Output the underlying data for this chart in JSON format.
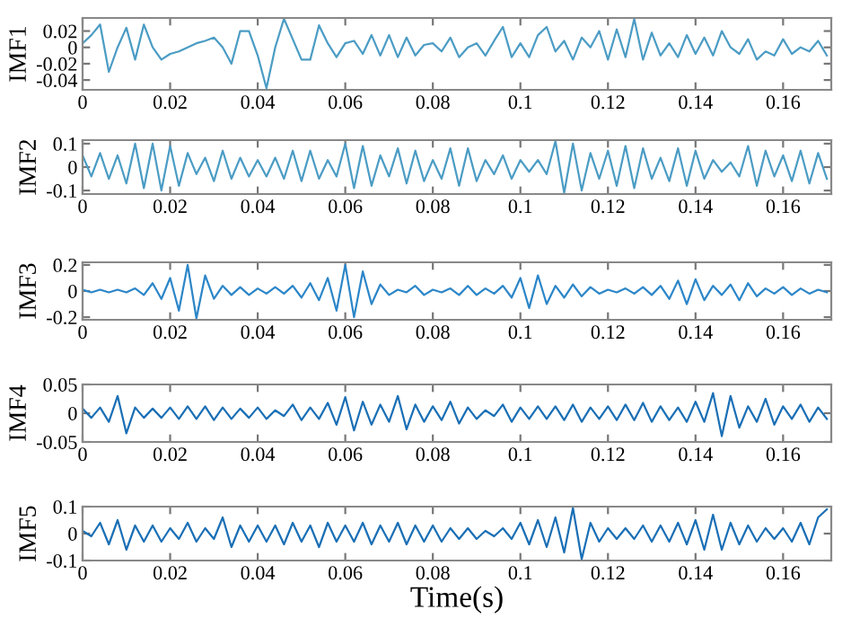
{
  "chart_data": [
    {
      "type": "line",
      "ylabel": "IMF1",
      "xlim": [
        0,
        0.171
      ],
      "xticks": [
        0,
        0.02,
        0.04,
        0.06,
        0.08,
        0.1,
        0.12,
        0.14,
        0.16
      ],
      "ylim": [
        -0.052,
        0.036
      ],
      "yticks": [
        -0.04,
        -0.02,
        0,
        0.02
      ],
      "x": [
        0,
        0.002,
        0.004,
        0.006,
        0.008,
        0.01,
        0.012,
        0.014,
        0.016,
        0.018,
        0.02,
        0.022,
        0.024,
        0.026,
        0.028,
        0.03,
        0.032,
        0.034,
        0.036,
        0.038,
        0.04,
        0.042,
        0.044,
        0.046,
        0.048,
        0.05,
        0.052,
        0.054,
        0.056,
        0.058,
        0.06,
        0.062,
        0.064,
        0.066,
        0.068,
        0.07,
        0.072,
        0.074,
        0.076,
        0.078,
        0.08,
        0.082,
        0.084,
        0.086,
        0.088,
        0.09,
        0.092,
        0.094,
        0.096,
        0.098,
        0.1,
        0.102,
        0.104,
        0.106,
        0.108,
        0.11,
        0.112,
        0.114,
        0.116,
        0.118,
        0.12,
        0.122,
        0.124,
        0.126,
        0.128,
        0.13,
        0.132,
        0.134,
        0.136,
        0.138,
        0.14,
        0.142,
        0.144,
        0.146,
        0.148,
        0.15,
        0.152,
        0.154,
        0.156,
        0.158,
        0.16,
        0.162,
        0.164,
        0.166,
        0.168,
        0.17
      ],
      "series": [
        {
          "color": "#4b9cc4",
          "values": [
            0.005,
            0.015,
            0.028,
            -0.03,
            0.0,
            0.024,
            -0.015,
            0.028,
            0.0,
            -0.015,
            -0.008,
            -0.005,
            0.0,
            0.005,
            0.008,
            0.012,
            0.0,
            -0.02,
            0.02,
            0.02,
            -0.01,
            -0.05,
            0.0,
            0.035,
            0.01,
            -0.015,
            -0.015,
            0.027,
            0.005,
            -0.012,
            0.005,
            0.008,
            -0.008,
            0.015,
            -0.01,
            0.015,
            -0.012,
            0.012,
            -0.01,
            0.003,
            0.005,
            -0.005,
            0.012,
            -0.012,
            0.0,
            0.005,
            -0.01,
            0.008,
            0.025,
            -0.012,
            0.005,
            -0.012,
            0.015,
            0.025,
            -0.005,
            0.008,
            -0.015,
            0.012,
            0.0,
            0.02,
            -0.015,
            0.022,
            -0.012,
            0.035,
            -0.015,
            0.018,
            -0.01,
            0.005,
            -0.012,
            0.015,
            -0.008,
            0.012,
            -0.01,
            0.02,
            0.0,
            -0.008,
            0.01,
            -0.015,
            -0.005,
            -0.01,
            0.01,
            -0.008,
            0.0,
            -0.005,
            0.008,
            -0.01
          ]
        }
      ]
    },
    {
      "type": "line",
      "ylabel": "IMF2",
      "xlim": [
        0,
        0.171
      ],
      "xticks": [
        0,
        0.02,
        0.04,
        0.06,
        0.08,
        0.1,
        0.12,
        0.14,
        0.16
      ],
      "ylim": [
        -0.115,
        0.115
      ],
      "yticks": [
        -0.1,
        0,
        0.1
      ],
      "x": [
        0,
        0.002,
        0.004,
        0.006,
        0.008,
        0.01,
        0.012,
        0.014,
        0.016,
        0.018,
        0.02,
        0.022,
        0.024,
        0.026,
        0.028,
        0.03,
        0.032,
        0.034,
        0.036,
        0.038,
        0.04,
        0.042,
        0.044,
        0.046,
        0.048,
        0.05,
        0.052,
        0.054,
        0.056,
        0.058,
        0.06,
        0.062,
        0.064,
        0.066,
        0.068,
        0.07,
        0.072,
        0.074,
        0.076,
        0.078,
        0.08,
        0.082,
        0.084,
        0.086,
        0.088,
        0.09,
        0.092,
        0.094,
        0.096,
        0.098,
        0.1,
        0.102,
        0.104,
        0.106,
        0.108,
        0.11,
        0.112,
        0.114,
        0.116,
        0.118,
        0.12,
        0.122,
        0.124,
        0.126,
        0.128,
        0.13,
        0.132,
        0.134,
        0.136,
        0.138,
        0.14,
        0.142,
        0.144,
        0.146,
        0.148,
        0.15,
        0.152,
        0.154,
        0.156,
        0.158,
        0.16,
        0.162,
        0.164,
        0.166,
        0.168,
        0.17
      ],
      "series": [
        {
          "color": "#4b9cc4",
          "values": [
            0.05,
            -0.04,
            0.06,
            -0.05,
            0.05,
            -0.07,
            0.1,
            -0.09,
            0.1,
            -0.1,
            0.09,
            -0.08,
            0.06,
            -0.03,
            0.04,
            -0.06,
            0.07,
            -0.05,
            0.04,
            -0.04,
            0.03,
            -0.04,
            0.04,
            -0.05,
            0.07,
            -0.06,
            0.07,
            -0.05,
            0.03,
            -0.04,
            0.1,
            -0.09,
            0.09,
            -0.08,
            0.05,
            -0.04,
            0.08,
            -0.07,
            0.07,
            -0.06,
            0.03,
            -0.05,
            0.08,
            -0.08,
            0.08,
            -0.06,
            0.03,
            -0.03,
            0.05,
            -0.05,
            0.03,
            -0.02,
            0.03,
            -0.03,
            0.11,
            -0.11,
            0.1,
            -0.1,
            0.06,
            -0.05,
            0.07,
            -0.08,
            0.09,
            -0.09,
            0.08,
            -0.05,
            0.04,
            -0.06,
            0.08,
            -0.08,
            0.07,
            -0.05,
            0.03,
            -0.02,
            0.02,
            -0.04,
            0.09,
            -0.08,
            0.07,
            -0.04,
            0.05,
            -0.06,
            0.07,
            -0.07,
            0.06,
            -0.05
          ]
        }
      ]
    },
    {
      "type": "line",
      "ylabel": "IMF3",
      "xlim": [
        0,
        0.171
      ],
      "xticks": [
        0,
        0.02,
        0.04,
        0.06,
        0.08,
        0.1,
        0.12,
        0.14,
        0.16
      ],
      "ylim": [
        -0.22,
        0.22
      ],
      "yticks": [
        -0.2,
        0,
        0.2
      ],
      "x": [
        0,
        0.002,
        0.004,
        0.006,
        0.008,
        0.01,
        0.012,
        0.014,
        0.016,
        0.018,
        0.02,
        0.022,
        0.024,
        0.026,
        0.028,
        0.03,
        0.032,
        0.034,
        0.036,
        0.038,
        0.04,
        0.042,
        0.044,
        0.046,
        0.048,
        0.05,
        0.052,
        0.054,
        0.056,
        0.058,
        0.06,
        0.062,
        0.064,
        0.066,
        0.068,
        0.07,
        0.072,
        0.074,
        0.076,
        0.078,
        0.08,
        0.082,
        0.084,
        0.086,
        0.088,
        0.09,
        0.092,
        0.094,
        0.096,
        0.098,
        0.1,
        0.102,
        0.104,
        0.106,
        0.108,
        0.11,
        0.112,
        0.114,
        0.116,
        0.118,
        0.12,
        0.122,
        0.124,
        0.126,
        0.128,
        0.13,
        0.132,
        0.134,
        0.136,
        0.138,
        0.14,
        0.142,
        0.144,
        0.146,
        0.148,
        0.15,
        0.152,
        0.154,
        0.156,
        0.158,
        0.16,
        0.162,
        0.164,
        0.166,
        0.168,
        0.17
      ],
      "series": [
        {
          "color": "#2c86c8",
          "values": [
            0.01,
            -0.01,
            0.01,
            -0.01,
            0.01,
            -0.01,
            0.02,
            -0.03,
            0.06,
            -0.06,
            0.1,
            -0.15,
            0.2,
            -0.21,
            0.12,
            -0.06,
            0.04,
            -0.03,
            0.03,
            -0.03,
            0.02,
            -0.02,
            0.03,
            -0.02,
            0.04,
            -0.05,
            0.06,
            -0.07,
            0.1,
            -0.15,
            0.2,
            -0.2,
            0.15,
            -0.1,
            0.05,
            -0.03,
            0.01,
            -0.01,
            0.04,
            -0.03,
            0.01,
            -0.01,
            0.02,
            -0.03,
            0.04,
            -0.03,
            0.02,
            -0.02,
            0.04,
            -0.05,
            0.1,
            -0.13,
            0.12,
            -0.1,
            0.04,
            -0.05,
            0.05,
            -0.04,
            0.03,
            -0.02,
            0.01,
            -0.01,
            0.02,
            -0.02,
            0.03,
            -0.03,
            0.04,
            -0.06,
            0.08,
            -0.1,
            0.09,
            -0.07,
            0.04,
            -0.03,
            0.05,
            -0.07,
            0.06,
            -0.04,
            0.02,
            -0.02,
            0.03,
            -0.03,
            0.02,
            -0.02,
            0.01,
            -0.01
          ]
        }
      ]
    },
    {
      "type": "line",
      "ylabel": "IMF4",
      "xlim": [
        0,
        0.171
      ],
      "xticks": [
        0,
        0.02,
        0.04,
        0.06,
        0.08,
        0.1,
        0.12,
        0.14,
        0.16
      ],
      "ylim": [
        -0.05,
        0.05
      ],
      "yticks": [
        -0.05,
        0,
        0.05
      ],
      "x": [
        0,
        0.002,
        0.004,
        0.006,
        0.008,
        0.01,
        0.012,
        0.014,
        0.016,
        0.018,
        0.02,
        0.022,
        0.024,
        0.026,
        0.028,
        0.03,
        0.032,
        0.034,
        0.036,
        0.038,
        0.04,
        0.042,
        0.044,
        0.046,
        0.048,
        0.05,
        0.052,
        0.054,
        0.056,
        0.058,
        0.06,
        0.062,
        0.064,
        0.066,
        0.068,
        0.07,
        0.072,
        0.074,
        0.076,
        0.078,
        0.08,
        0.082,
        0.084,
        0.086,
        0.088,
        0.09,
        0.092,
        0.094,
        0.096,
        0.098,
        0.1,
        0.102,
        0.104,
        0.106,
        0.108,
        0.11,
        0.112,
        0.114,
        0.116,
        0.118,
        0.12,
        0.122,
        0.124,
        0.126,
        0.128,
        0.13,
        0.132,
        0.134,
        0.136,
        0.138,
        0.14,
        0.142,
        0.144,
        0.146,
        0.148,
        0.15,
        0.152,
        0.154,
        0.156,
        0.158,
        0.16,
        0.162,
        0.164,
        0.166,
        0.168,
        0.17
      ],
      "series": [
        {
          "color": "#1a6fb5",
          "values": [
            0.008,
            -0.008,
            0.01,
            -0.015,
            0.03,
            -0.035,
            0.01,
            -0.008,
            0.008,
            -0.008,
            0.01,
            -0.01,
            0.012,
            -0.01,
            0.012,
            -0.012,
            0.01,
            -0.01,
            0.008,
            -0.008,
            0.01,
            -0.01,
            0.005,
            -0.005,
            0.015,
            -0.012,
            0.01,
            -0.01,
            0.018,
            -0.02,
            0.028,
            -0.03,
            0.02,
            -0.02,
            0.015,
            -0.015,
            0.03,
            -0.028,
            0.015,
            -0.015,
            0.012,
            -0.012,
            0.02,
            -0.018,
            0.01,
            -0.01,
            0.005,
            -0.005,
            0.015,
            -0.015,
            0.01,
            -0.01,
            0.012,
            -0.01,
            0.012,
            -0.012,
            0.015,
            -0.015,
            0.01,
            -0.01,
            0.012,
            -0.012,
            0.015,
            -0.012,
            0.018,
            -0.015,
            0.012,
            -0.012,
            0.01,
            -0.015,
            0.02,
            -0.015,
            0.035,
            -0.04,
            0.03,
            -0.025,
            0.012,
            -0.015,
            0.025,
            -0.02,
            0.012,
            -0.01,
            0.015,
            -0.015,
            0.01,
            -0.01
          ]
        }
      ]
    },
    {
      "type": "line",
      "ylabel": "IMF5",
      "xlabel": "Time(s)",
      "xlim": [
        0,
        0.171
      ],
      "xticks": [
        0,
        0.02,
        0.04,
        0.06,
        0.08,
        0.1,
        0.12,
        0.14,
        0.16
      ],
      "ylim": [
        -0.1,
        0.1
      ],
      "yticks": [
        -0.1,
        0,
        0.1
      ],
      "x": [
        0,
        0.002,
        0.004,
        0.006,
        0.008,
        0.01,
        0.012,
        0.014,
        0.016,
        0.018,
        0.02,
        0.022,
        0.024,
        0.026,
        0.028,
        0.03,
        0.032,
        0.034,
        0.036,
        0.038,
        0.04,
        0.042,
        0.044,
        0.046,
        0.048,
        0.05,
        0.052,
        0.054,
        0.056,
        0.058,
        0.06,
        0.062,
        0.064,
        0.066,
        0.068,
        0.07,
        0.072,
        0.074,
        0.076,
        0.078,
        0.08,
        0.082,
        0.084,
        0.086,
        0.088,
        0.09,
        0.092,
        0.094,
        0.096,
        0.098,
        0.1,
        0.102,
        0.104,
        0.106,
        0.108,
        0.11,
        0.112,
        0.114,
        0.116,
        0.118,
        0.12,
        0.122,
        0.124,
        0.126,
        0.128,
        0.13,
        0.132,
        0.134,
        0.136,
        0.138,
        0.14,
        0.142,
        0.144,
        0.146,
        0.148,
        0.15,
        0.152,
        0.154,
        0.156,
        0.158,
        0.16,
        0.162,
        0.164,
        0.166,
        0.168,
        0.17
      ],
      "series": [
        {
          "color": "#1a6fb5",
          "values": [
            0.01,
            -0.01,
            0.04,
            -0.04,
            0.05,
            -0.06,
            0.03,
            -0.03,
            0.03,
            -0.03,
            0.02,
            -0.02,
            0.04,
            -0.03,
            0.02,
            -0.02,
            0.06,
            -0.05,
            0.03,
            -0.03,
            0.03,
            -0.03,
            0.03,
            -0.04,
            0.04,
            -0.03,
            0.03,
            -0.05,
            0.04,
            -0.03,
            0.03,
            -0.03,
            0.04,
            -0.04,
            0.03,
            -0.03,
            0.04,
            -0.04,
            0.03,
            -0.03,
            0.03,
            -0.03,
            0.02,
            -0.02,
            0.02,
            -0.02,
            0.01,
            -0.01,
            0.02,
            -0.02,
            0.04,
            -0.04,
            0.05,
            -0.05,
            0.06,
            -0.07,
            0.095,
            -0.095,
            0.04,
            -0.03,
            0.02,
            -0.02,
            0.02,
            -0.02,
            0.03,
            -0.03,
            0.03,
            -0.03,
            0.04,
            -0.04,
            0.05,
            -0.06,
            0.07,
            -0.06,
            0.04,
            -0.04,
            0.03,
            -0.03,
            0.02,
            -0.02,
            0.02,
            -0.03,
            0.04,
            -0.04,
            0.06,
            0.09
          ]
        }
      ]
    }
  ]
}
